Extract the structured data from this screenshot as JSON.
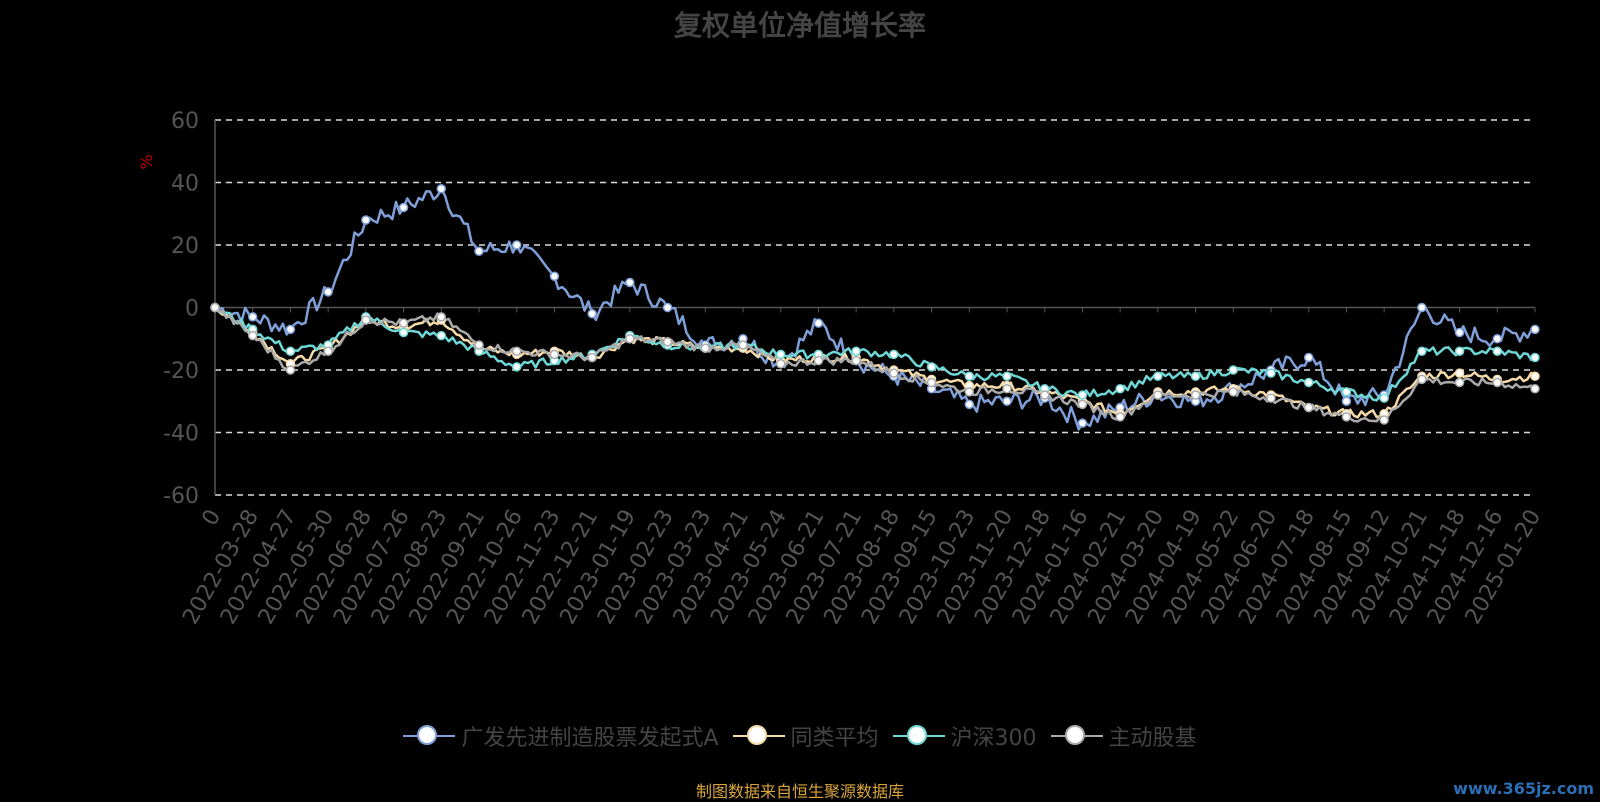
{
  "title": "复权单位净值增长率",
  "source_note": "制图数据来自恒生聚源数据库",
  "watermark": "www.365jz.com",
  "chart_data": {
    "type": "line",
    "title": "复权单位净值增长率",
    "ylabel": "%",
    "xlabel": "",
    "ylim": [
      -60,
      60
    ],
    "yticks": [
      60,
      40,
      20,
      0,
      -20,
      -40,
      -60
    ],
    "grid": true,
    "legend": "bottom-center",
    "categories": [
      "0",
      "2022-03-28",
      "2022-04-27",
      "2022-05-30",
      "2022-06-28",
      "2022-07-26",
      "2022-08-23",
      "2022-09-21",
      "2022-10-26",
      "2022-11-23",
      "2022-12-21",
      "2023-01-19",
      "2023-02-23",
      "2023-03-23",
      "2023-04-21",
      "2023-05-24",
      "2023-06-21",
      "2023-07-21",
      "2023-08-18",
      "2023-09-15",
      "2023-10-23",
      "2023-11-20",
      "2023-12-18",
      "2024-01-16",
      "2024-02-21",
      "2024-03-20",
      "2024-04-19",
      "2024-05-22",
      "2024-06-20",
      "2024-07-18",
      "2024-08-15",
      "2024-09-12",
      "2024-10-21",
      "2024-11-18",
      "2024-12-16",
      "2025-01-20"
    ],
    "series": [
      {
        "name": "广发先进制造股票发起式A",
        "color": "#7f9fd8",
        "values": [
          0,
          -3,
          -7,
          5,
          28,
          32,
          38,
          18,
          20,
          10,
          -2,
          8,
          0,
          -12,
          -10,
          -18,
          -5,
          -17,
          -22,
          -26,
          -31,
          -30,
          -29,
          -37,
          -32,
          -28,
          -30,
          -26,
          -20,
          -16,
          -30,
          -28,
          0,
          -8,
          -10,
          -7
        ]
      },
      {
        "name": "同类平均",
        "color": "#f5d9a6",
        "values": [
          0,
          -8,
          -18,
          -13,
          -4,
          -6,
          -4,
          -13,
          -15,
          -14,
          -16,
          -10,
          -11,
          -13,
          -13,
          -17,
          -16,
          -16,
          -20,
          -23,
          -25,
          -25,
          -27,
          -30,
          -34,
          -27,
          -27,
          -26,
          -28,
          -32,
          -34,
          -34,
          -22,
          -21,
          -23,
          -22
        ]
      },
      {
        "name": "沪深300",
        "color": "#6fd6d6",
        "values": [
          0,
          -7,
          -14,
          -12,
          -3,
          -8,
          -9,
          -14,
          -19,
          -17,
          -15,
          -9,
          -12,
          -13,
          -12,
          -15,
          -15,
          -14,
          -15,
          -19,
          -22,
          -22,
          -26,
          -28,
          -26,
          -22,
          -22,
          -20,
          -21,
          -24,
          -27,
          -29,
          -14,
          -14,
          -14,
          -16
        ]
      },
      {
        "name": "主动股基",
        "color": "#aaaaaa",
        "values": [
          0,
          -9,
          -20,
          -14,
          -4,
          -5,
          -3,
          -12,
          -14,
          -15,
          -16,
          -10,
          -11,
          -13,
          -12,
          -18,
          -17,
          -17,
          -21,
          -24,
          -27,
          -26,
          -28,
          -31,
          -35,
          -28,
          -28,
          -27,
          -29,
          -32,
          -35,
          -36,
          -23,
          -24,
          -24,
          -26
        ]
      }
    ]
  }
}
